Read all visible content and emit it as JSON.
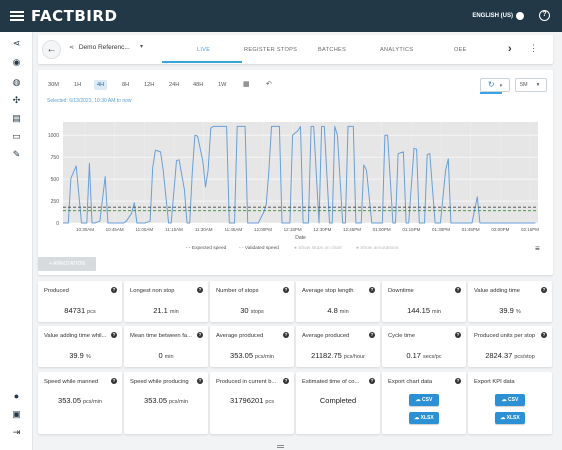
{
  "app": {
    "logo": "FACTBIRD",
    "language": "ENGLISH (US)",
    "help": "?"
  },
  "nav_icons": [
    "share-icon",
    "signal-icon",
    "dashboard-icon",
    "team-icon",
    "documents-icon",
    "monitor-icon",
    "wrench-icon",
    "people-icon",
    "chat-icon",
    "logout-icon"
  ],
  "tabbar": {
    "device_name": "Demo Referenc...",
    "tabs": [
      "LIVE",
      "REGISTER STOPS",
      "BATCHES",
      "ANALYTICS",
      "OEE"
    ],
    "active_tab": "LIVE"
  },
  "chart_toolbar": {
    "ranges": [
      "30M",
      "1H",
      "4H",
      "8H",
      "12H",
      "24H",
      "48H",
      "1W"
    ],
    "active_range": "4H",
    "selected_text": "Selected: 6/13/2023, 10:30 AM to now",
    "interval": "5M"
  },
  "chart_data": {
    "type": "line",
    "title": "",
    "xlabel": "Date",
    "ylabel": "",
    "ylim": [
      0,
      1150
    ],
    "y_ticks": [
      0,
      250,
      500,
      750,
      1000
    ],
    "x_ticks": [
      "10:30AM",
      "10:45AM",
      "11:00AM",
      "11:15AM",
      "11:30AM",
      "11:45AM",
      "12:00PM",
      "12:15PM",
      "12:30PM",
      "12:45PM",
      "01:00PM",
      "01:15PM",
      "01:30PM",
      "01:45PM",
      "02:00PM",
      "02:15PM"
    ],
    "series": [
      {
        "name": "Produced",
        "color": "#6a9fd8",
        "x": [
          0,
          2,
          3,
          5,
          7,
          9,
          10,
          11,
          12,
          14,
          16,
          17,
          18,
          20,
          21,
          23,
          24,
          26,
          27,
          28,
          29,
          30,
          31,
          33,
          34,
          35,
          37,
          38,
          40,
          41,
          43,
          44,
          46,
          47,
          48,
          49,
          50,
          51,
          53,
          54,
          55,
          56,
          57,
          58,
          59,
          60,
          61,
          62,
          63,
          65,
          66,
          67,
          69,
          70,
          71,
          73,
          74,
          76,
          77,
          78,
          79,
          80,
          82,
          83,
          85,
          86,
          87,
          89,
          90,
          91,
          93,
          94,
          95,
          97,
          98,
          99,
          101,
          102,
          103,
          104,
          106,
          107,
          108,
          110,
          111,
          113,
          114,
          115,
          117,
          118,
          120,
          121,
          122,
          123,
          125,
          126,
          127,
          129,
          130,
          131,
          133,
          134,
          135,
          137,
          138,
          139,
          141,
          142,
          143,
          145,
          146,
          147,
          149,
          150,
          151,
          153,
          154,
          155,
          157,
          158,
          159,
          161,
          162,
          163,
          165,
          166,
          167,
          169,
          170,
          171,
          173,
          174,
          175,
          177,
          178,
          179
        ],
        "values": [
          0,
          0,
          510,
          650,
          0,
          0,
          680,
          0,
          0,
          20,
          530,
          0,
          0,
          0,
          0,
          0,
          20,
          110,
          230,
          0,
          0,
          0,
          0,
          20,
          630,
          830,
          810,
          590,
          0,
          0,
          710,
          720,
          380,
          0,
          0,
          580,
          1000,
          990,
          700,
          410,
          600,
          1080,
          1100,
          1100,
          1100,
          1100,
          1100,
          1100,
          0,
          0,
          1100,
          1100,
          1100,
          0,
          0,
          0,
          0,
          120,
          210,
          580,
          1100,
          1100,
          1100,
          0,
          0,
          0,
          1000,
          1050,
          1100,
          0,
          0,
          1100,
          1100,
          0,
          1100,
          1100,
          0,
          0,
          1100,
          1000,
          0,
          0,
          1100,
          1100,
          0,
          0,
          660,
          600,
          0,
          0,
          0,
          0,
          1000,
          1000,
          0,
          0,
          790,
          810,
          0,
          0,
          850,
          840,
          0,
          0,
          780,
          790,
          0,
          0,
          0,
          600,
          730,
          0,
          0,
          0,
          0,
          0,
          0,
          0,
          300,
          0,
          0,
          0,
          0,
          0,
          0,
          0,
          0,
          0,
          0,
          0,
          0,
          0,
          0,
          0,
          0,
          0
        ]
      },
      {
        "name": "Expected speed",
        "color": "#444444",
        "dashed": true,
        "constant": 180
      },
      {
        "name": "Validated speed",
        "color": "#3b8a3b",
        "dashed": true,
        "constant": 140
      }
    ],
    "grid": true,
    "legend": "bottom",
    "legend_entries": [
      "Expected speed",
      "Validated speed",
      "Show stops on chart",
      "Show annotations"
    ]
  },
  "annotation_button": "+ ANNOTATION",
  "kpis": [
    {
      "title": "Produced",
      "value": "84731",
      "unit": "pcs"
    },
    {
      "title": "Longest non stop",
      "value": "21.1",
      "unit": "min"
    },
    {
      "title": "Number of stops",
      "value": "30",
      "unit": "stops"
    },
    {
      "title": "Average stop length",
      "value": "4.8",
      "unit": "min"
    },
    {
      "title": "Downtime",
      "value": "144.15",
      "unit": "min"
    },
    {
      "title": "Value adding time",
      "value": "39.9",
      "unit": "%"
    },
    {
      "title": "Value adding time whil...",
      "value": "39.9",
      "unit": "%"
    },
    {
      "title": "Mean time between fa...",
      "value": "0",
      "unit": "min"
    },
    {
      "title": "Average produced",
      "value": "353.05",
      "unit": "pcs/min"
    },
    {
      "title": "Average produced",
      "value": "21182.75",
      "unit": "pcs/hour"
    },
    {
      "title": "Cycle time",
      "value": "0.17",
      "unit": "secs/pc"
    },
    {
      "title": "Produced units per stop",
      "value": "2824.37",
      "unit": "pcs/stop"
    },
    {
      "title": "Speed while manned",
      "value": "353.05",
      "unit": "pcs/min"
    },
    {
      "title": "Speed while producing",
      "value": "353.05",
      "unit": "pcs/min"
    },
    {
      "title": "Produced in current b...",
      "value": "31796201",
      "unit": "pcs"
    },
    {
      "title": "Estimated time of co...",
      "value": "Completed",
      "unit": ""
    }
  ],
  "exports": [
    {
      "title": "Export chart data",
      "csv": "CSV",
      "xlsx": "XLSX"
    },
    {
      "title": "Export KPI data",
      "csv": "CSV",
      "xlsx": "XLSX"
    }
  ]
}
